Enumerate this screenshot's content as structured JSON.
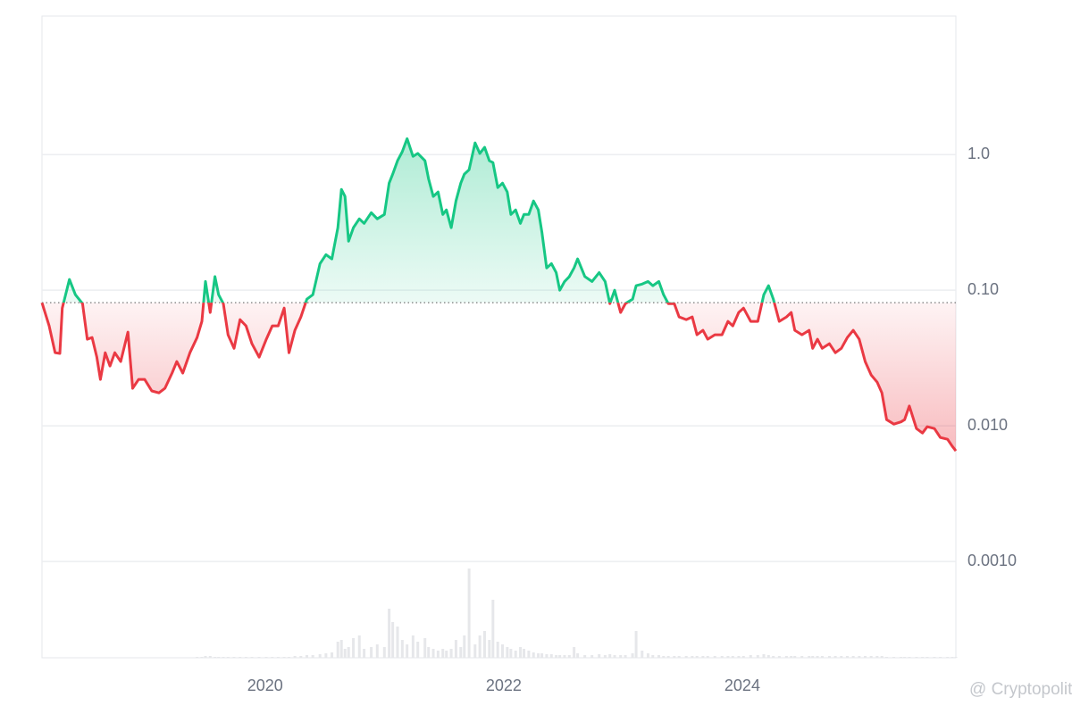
{
  "chart_data": {
    "type": "line",
    "log_scale": true,
    "grid": true,
    "up_color": "#16c784",
    "down_color": "#ea3943",
    "volume_color": "#e6e7ea",
    "watermark": "@ Cryptopolitan",
    "xlim": [
      2018.13,
      2025.79
    ],
    "xticks": [
      2020,
      2022,
      2024
    ],
    "ylim": [
      0.000195,
      10.5
    ],
    "yticks": [
      {
        "value": 1,
        "label": "1.0"
      },
      {
        "value": 0.1,
        "label": "0.10"
      },
      {
        "value": 0.01,
        "label": "0.010"
      },
      {
        "value": 0.001,
        "label": "0.0010"
      }
    ],
    "x": [
      2018.13,
      2018.19,
      2018.24,
      2018.28,
      2018.3,
      2018.36,
      2018.41,
      2018.47,
      2018.51,
      2018.55,
      2018.59,
      2018.62,
      2018.66,
      2018.7,
      2018.74,
      2018.79,
      2018.85,
      2018.89,
      2018.94,
      2018.99,
      2019.05,
      2019.11,
      2019.16,
      2019.22,
      2019.26,
      2019.31,
      2019.37,
      2019.43,
      2019.47,
      2019.5,
      2019.54,
      2019.58,
      2019.61,
      2019.65,
      2019.69,
      2019.74,
      2019.79,
      2019.84,
      2019.89,
      2019.95,
      2020.01,
      2020.06,
      2020.11,
      2020.16,
      2020.2,
      2020.25,
      2020.3,
      2020.35,
      2020.4,
      2020.46,
      2020.51,
      2020.56,
      2020.61,
      2020.64,
      2020.67,
      2020.7,
      2020.74,
      2020.79,
      2020.83,
      2020.89,
      2020.94,
      2021.0,
      2021.04,
      2021.07,
      2021.11,
      2021.15,
      2021.19,
      2021.24,
      2021.28,
      2021.34,
      2021.37,
      2021.41,
      2021.45,
      2021.49,
      2021.52,
      2021.56,
      2021.6,
      2021.64,
      2021.67,
      2021.71,
      2021.76,
      2021.8,
      2021.84,
      2021.88,
      2021.91,
      2021.95,
      2021.99,
      2022.03,
      2022.06,
      2022.1,
      2022.14,
      2022.17,
      2022.21,
      2022.25,
      2022.29,
      2022.32,
      2022.36,
      2022.4,
      2022.44,
      2022.47,
      2022.51,
      2022.55,
      2022.59,
      2022.62,
      2022.68,
      2022.74,
      2022.8,
      2022.85,
      2022.89,
      2022.93,
      2022.98,
      2023.02,
      2023.08,
      2023.11,
      2023.16,
      2023.21,
      2023.25,
      2023.3,
      2023.34,
      2023.38,
      2023.43,
      2023.47,
      2023.53,
      2023.58,
      2023.62,
      2023.67,
      2023.71,
      2023.77,
      2023.83,
      2023.88,
      2023.92,
      2023.97,
      2024.01,
      2024.07,
      2024.13,
      2024.18,
      2024.22,
      2024.26,
      2024.31,
      2024.37,
      2024.41,
      2024.44,
      2024.5,
      2024.56,
      2024.59,
      2024.63,
      2024.67,
      2024.73,
      2024.78,
      2024.83,
      2024.88,
      2024.93,
      2024.98,
      2025.03,
      2025.08,
      2025.13,
      2025.17,
      2025.21,
      2025.27,
      2025.33,
      2025.36,
      2025.4,
      2025.46,
      2025.51,
      2025.55,
      2025.61,
      2025.66,
      2025.72,
      2025.76,
      2025.79
    ],
    "values": [
      0.0809,
      0.0546,
      0.0346,
      0.0342,
      0.0738,
      0.12,
      0.0927,
      0.0796,
      0.0435,
      0.0448,
      0.0321,
      0.022,
      0.0346,
      0.0276,
      0.0346,
      0.0298,
      0.0491,
      0.0189,
      0.022,
      0.022,
      0.0181,
      0.0175,
      0.0189,
      0.0245,
      0.0298,
      0.0245,
      0.0346,
      0.0448,
      0.0589,
      0.116,
      0.0685,
      0.126,
      0.0927,
      0.0796,
      0.0469,
      0.0373,
      0.0607,
      0.0546,
      0.0403,
      0.0321,
      0.0435,
      0.0546,
      0.0546,
      0.0738,
      0.0346,
      0.0506,
      0.0635,
      0.0859,
      0.0927,
      0.157,
      0.183,
      0.17,
      0.289,
      0.554,
      0.491,
      0.23,
      0.289,
      0.336,
      0.311,
      0.373,
      0.336,
      0.362,
      0.616,
      0.717,
      0.9,
      1.05,
      1.31,
      0.97,
      1.02,
      0.9,
      0.664,
      0.491,
      0.53,
      0.362,
      0.391,
      0.289,
      0.455,
      0.616,
      0.717,
      0.773,
      1.22,
      1.02,
      1.13,
      0.9,
      0.873,
      0.571,
      0.616,
      0.53,
      0.362,
      0.391,
      0.311,
      0.362,
      0.362,
      0.455,
      0.391,
      0.268,
      0.146,
      0.157,
      0.135,
      0.1,
      0.116,
      0.126,
      0.146,
      0.17,
      0.126,
      0.116,
      0.135,
      0.116,
      0.0796,
      0.1,
      0.0685,
      0.0796,
      0.0859,
      0.108,
      0.111,
      0.116,
      0.108,
      0.116,
      0.0927,
      0.0796,
      0.0796,
      0.0635,
      0.0607,
      0.0635,
      0.0469,
      0.0506,
      0.0435,
      0.0469,
      0.0469,
      0.0589,
      0.0546,
      0.0685,
      0.0738,
      0.0589,
      0.0589,
      0.0927,
      0.108,
      0.0859,
      0.0589,
      0.0635,
      0.0685,
      0.0506,
      0.0469,
      0.0506,
      0.0373,
      0.0435,
      0.0373,
      0.0403,
      0.0346,
      0.0373,
      0.0448,
      0.0506,
      0.0435,
      0.0298,
      0.0237,
      0.021,
      0.0175,
      0.0111,
      0.0103,
      0.0107,
      0.0111,
      0.014,
      0.00955,
      0.00885,
      0.00985,
      0.00955,
      0.00821,
      0.00796,
      0.00706,
      0.00654
    ],
    "volume": [
      0,
      0,
      0,
      0,
      0,
      0,
      0,
      0,
      0,
      0,
      0,
      0,
      0,
      0,
      0,
      0,
      0,
      0,
      0,
      0,
      0,
      0,
      0,
      0,
      0,
      0,
      0,
      1,
      1,
      2,
      2,
      1,
      1,
      1,
      1,
      1,
      1,
      1,
      1,
      1,
      1,
      1,
      1,
      1,
      1,
      2,
      2,
      3,
      3,
      4,
      5,
      6,
      18,
      20,
      10,
      12,
      22,
      25,
      10,
      12,
      15,
      12,
      55,
      40,
      35,
      20,
      15,
      25,
      18,
      22,
      12,
      10,
      8,
      10,
      8,
      10,
      20,
      12,
      25,
      100,
      15,
      25,
      30,
      20,
      65,
      18,
      15,
      12,
      10,
      8,
      12,
      10,
      8,
      6,
      5,
      5,
      4,
      4,
      3,
      3,
      3,
      3,
      12,
      5,
      3,
      3,
      4,
      3,
      4,
      3,
      3,
      3,
      5,
      30,
      8,
      5,
      3,
      3,
      2,
      2,
      2,
      2,
      2,
      2,
      2,
      2,
      2,
      2,
      2,
      2,
      2,
      2,
      2,
      3,
      3,
      4,
      3,
      2,
      2,
      2,
      2,
      2,
      2,
      2,
      2,
      2,
      2,
      2,
      2,
      2,
      2,
      2,
      2,
      2,
      2,
      2,
      2,
      1,
      1,
      1,
      1,
      1,
      1,
      1,
      1,
      1,
      1,
      1,
      1,
      1
    ]
  }
}
